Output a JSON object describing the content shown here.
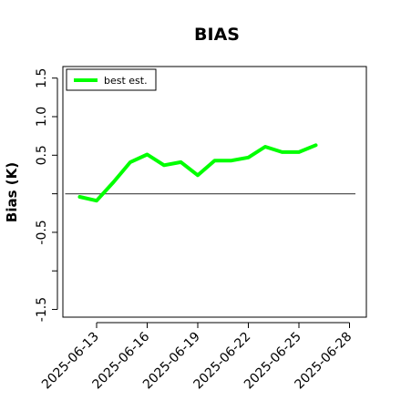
{
  "chart_data": {
    "type": "line",
    "title": "BIAS",
    "ylabel": "Bias (K)",
    "xlabel": "",
    "x": [
      "2025-06-12",
      "2025-06-13",
      "2025-06-14",
      "2025-06-15",
      "2025-06-16",
      "2025-06-17",
      "2025-06-18",
      "2025-06-19",
      "2025-06-20",
      "2025-06-21",
      "2025-06-22",
      "2025-06-23",
      "2025-06-24",
      "2025-06-25",
      "2025-06-26"
    ],
    "series": [
      {
        "name": "best est.",
        "color": "#00ff00",
        "values": [
          -0.04,
          -0.09,
          0.15,
          0.41,
          0.51,
          0.37,
          0.41,
          0.24,
          0.43,
          0.43,
          0.47,
          0.61,
          0.54,
          0.54,
          0.63
        ]
      }
    ],
    "reference_line": {
      "y": 0,
      "color": "#555555"
    },
    "xticks": [
      "2025-06-13",
      "2025-06-16",
      "2025-06-19",
      "2025-06-22",
      "2025-06-25",
      "2025-06-28"
    ],
    "yticks": [
      -1.5,
      -1.0,
      -0.5,
      0.0,
      0.5,
      1.0,
      1.5
    ],
    "ytick_labels": [
      "-1.5",
      "",
      "-0.5",
      "",
      "0.5",
      "1.0",
      "1.5"
    ],
    "xlim": [
      "2025-06-11",
      "2025-06-29"
    ],
    "ylim": [
      -1.6,
      1.65
    ],
    "grid": false,
    "legend_position": "top-left"
  }
}
